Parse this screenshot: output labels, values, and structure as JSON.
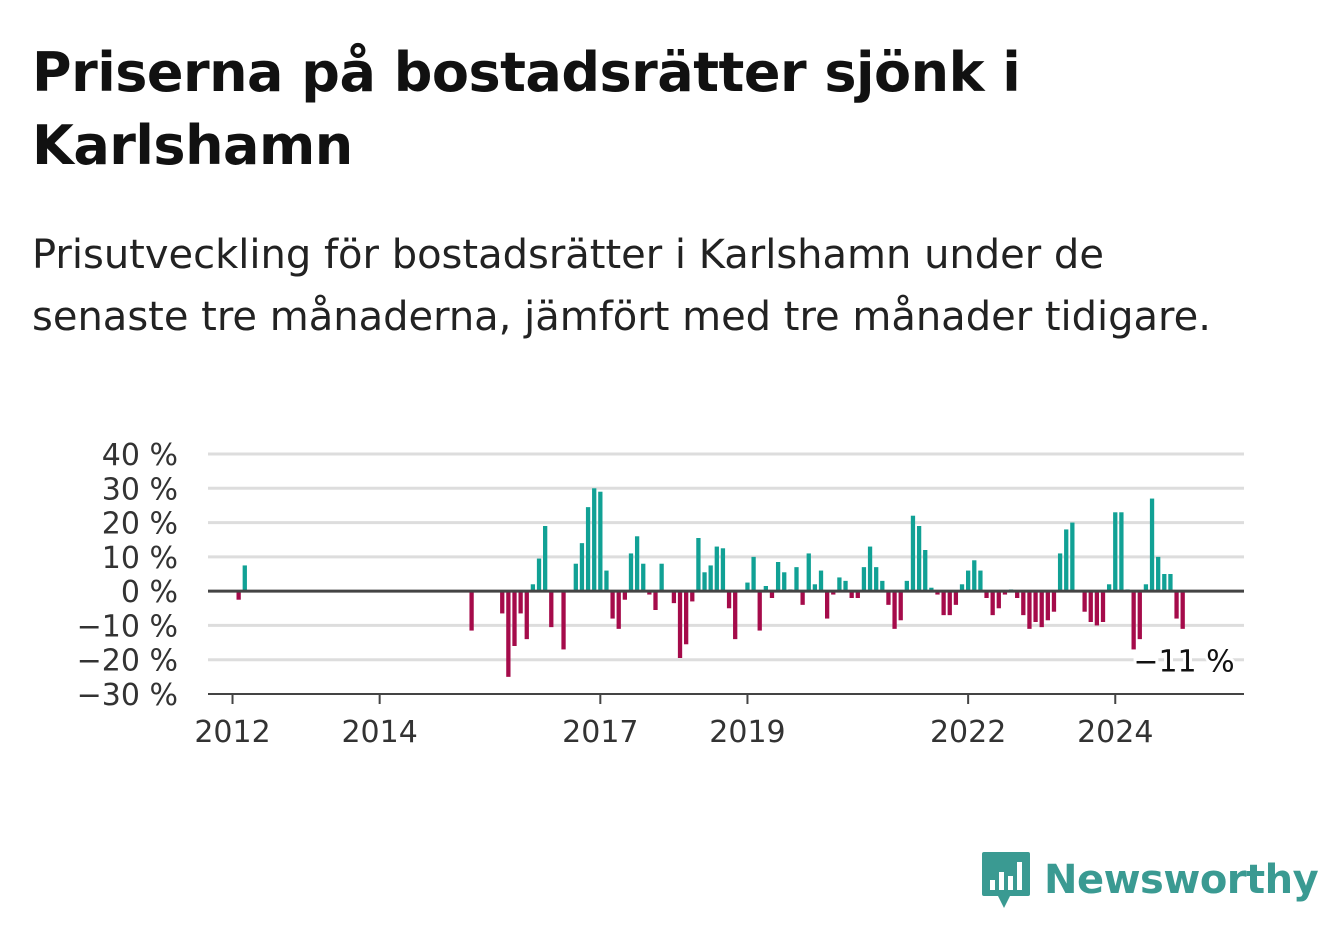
{
  "title": "Priserna på bostadsrätter sjönk i Karlshamn",
  "subtitle": "Prisutveckling för bostadsrätter i Karlshamn under de senaste tre månaderna, jämfört med tre månader tidigare.",
  "brand": {
    "name": "Newsworthy",
    "icon": "newsworthy-logo-icon",
    "color": "#3a9a92"
  },
  "colors": {
    "positive": "#11a195",
    "negative": "#a50b4a",
    "grid": "#dddddd",
    "zero": "#444444"
  },
  "chart_data": {
    "type": "bar",
    "title": "",
    "xlabel": "",
    "ylabel": "",
    "ylim": [
      -30,
      40
    ],
    "yticks": [
      -30,
      -20,
      -10,
      0,
      10,
      20,
      30,
      40
    ],
    "ytick_labels": [
      "−30 %",
      "−20 %",
      "−10 %",
      "0 %",
      "10 %",
      "20 %",
      "30 %",
      "40 %"
    ],
    "xlim": [
      "2011-09",
      "2025-10"
    ],
    "xticks": [
      "2012-01",
      "2014-01",
      "2017-01",
      "2019-01",
      "2022-01",
      "2024-01"
    ],
    "xtick_labels": [
      "2012",
      "2014",
      "2017",
      "2019",
      "2022",
      "2024"
    ],
    "grid": true,
    "last_value_label": "−11 %",
    "series": [
      {
        "values": [
          [
            "2012-02",
            -2.5
          ],
          [
            "2012-03",
            7.5
          ],
          [
            "2015-04",
            -11.5
          ],
          [
            "2015-09",
            -6.5
          ],
          [
            "2015-10",
            -25
          ],
          [
            "2015-11",
            -16
          ],
          [
            "2015-12",
            -6.5
          ],
          [
            "2016-01",
            -14
          ],
          [
            "2016-02",
            2
          ],
          [
            "2016-03",
            9.5
          ],
          [
            "2016-04",
            19
          ],
          [
            "2016-05",
            -10.5
          ],
          [
            "2016-06",
            0
          ],
          [
            "2016-07",
            -17
          ],
          [
            "2016-08",
            0
          ],
          [
            "2016-09",
            8
          ],
          [
            "2016-10",
            14
          ],
          [
            "2016-11",
            24.5
          ],
          [
            "2016-12",
            30
          ],
          [
            "2017-01",
            29
          ],
          [
            "2017-02",
            6
          ],
          [
            "2017-03",
            -8
          ],
          [
            "2017-04",
            -11
          ],
          [
            "2017-05",
            -2.5
          ],
          [
            "2017-06",
            11
          ],
          [
            "2017-07",
            16
          ],
          [
            "2017-08",
            8
          ],
          [
            "2017-09",
            -1
          ],
          [
            "2017-10",
            -5.5
          ],
          [
            "2017-11",
            8
          ],
          [
            "2017-12",
            0
          ],
          [
            "2018-01",
            -3.5
          ],
          [
            "2018-02",
            -19.5
          ],
          [
            "2018-03",
            -15.5
          ],
          [
            "2018-04",
            -3
          ],
          [
            "2018-05",
            15.5
          ],
          [
            "2018-06",
            5.5
          ],
          [
            "2018-07",
            7.5
          ],
          [
            "2018-08",
            13
          ],
          [
            "2018-09",
            12.5
          ],
          [
            "2018-10",
            -5
          ],
          [
            "2018-11",
            -14
          ],
          [
            "2018-12",
            0
          ],
          [
            "2019-01",
            2.5
          ],
          [
            "2019-02",
            10
          ],
          [
            "2019-03",
            -11.5
          ],
          [
            "2019-04",
            1.5
          ],
          [
            "2019-05",
            -2
          ],
          [
            "2019-06",
            8.5
          ],
          [
            "2019-07",
            5.5
          ],
          [
            "2019-08",
            0.5
          ],
          [
            "2019-09",
            7
          ],
          [
            "2019-10",
            -4
          ],
          [
            "2019-11",
            11
          ],
          [
            "2019-12",
            2
          ],
          [
            "2020-01",
            6
          ],
          [
            "2020-02",
            -8
          ],
          [
            "2020-03",
            -1
          ],
          [
            "2020-04",
            4
          ],
          [
            "2020-05",
            3
          ],
          [
            "2020-06",
            -2
          ],
          [
            "2020-07",
            -2
          ],
          [
            "2020-08",
            7
          ],
          [
            "2020-09",
            13
          ],
          [
            "2020-10",
            7
          ],
          [
            "2020-11",
            3
          ],
          [
            "2020-12",
            -4
          ],
          [
            "2021-01",
            -11
          ],
          [
            "2021-02",
            -8.5
          ],
          [
            "2021-03",
            3
          ],
          [
            "2021-04",
            22
          ],
          [
            "2021-05",
            19
          ],
          [
            "2021-06",
            12
          ],
          [
            "2021-07",
            1
          ],
          [
            "2021-08",
            -1
          ],
          [
            "2021-09",
            -7
          ],
          [
            "2021-10",
            -7
          ],
          [
            "2021-11",
            -4
          ],
          [
            "2021-12",
            2
          ],
          [
            "2022-01",
            6
          ],
          [
            "2022-02",
            9
          ],
          [
            "2022-03",
            6
          ],
          [
            "2022-04",
            -2
          ],
          [
            "2022-05",
            -7
          ],
          [
            "2022-06",
            -5
          ],
          [
            "2022-07",
            -1
          ],
          [
            "2022-08",
            0.5
          ],
          [
            "2022-09",
            -2
          ],
          [
            "2022-10",
            -7
          ],
          [
            "2022-11",
            -11
          ],
          [
            "2022-12",
            -9
          ],
          [
            "2023-01",
            -10.5
          ],
          [
            "2023-02",
            -8.5
          ],
          [
            "2023-03",
            -6
          ],
          [
            "2023-04",
            11
          ],
          [
            "2023-05",
            18
          ],
          [
            "2023-06",
            20
          ],
          [
            "2023-07",
            0
          ],
          [
            "2023-08",
            -6
          ],
          [
            "2023-09",
            -9
          ],
          [
            "2023-10",
            -10
          ],
          [
            "2023-11",
            -9
          ],
          [
            "2023-12",
            2
          ],
          [
            "2024-01",
            23
          ],
          [
            "2024-02",
            23
          ],
          [
            "2024-03",
            0.5
          ],
          [
            "2024-04",
            -17
          ],
          [
            "2024-05",
            -14
          ],
          [
            "2024-06",
            2
          ],
          [
            "2024-07",
            27
          ],
          [
            "2024-08",
            10
          ],
          [
            "2024-09",
            5
          ],
          [
            "2024-10",
            5
          ],
          [
            "2024-11",
            -8
          ],
          [
            "2024-12",
            -11
          ]
        ]
      }
    ]
  }
}
